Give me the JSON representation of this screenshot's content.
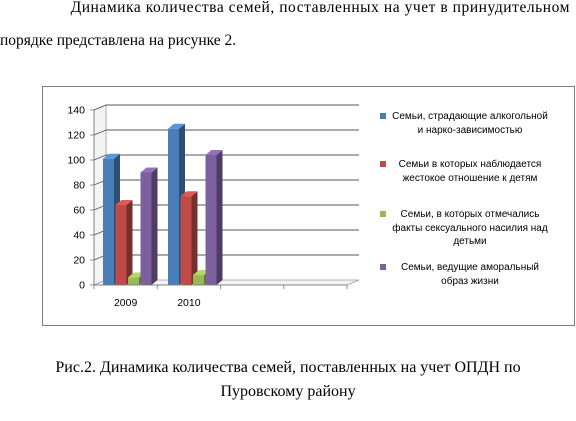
{
  "intro": {
    "line1": "Динамика количества семей,  поставленных на учет в принудительном",
    "line2": "порядке представлена на рисунке 2."
  },
  "caption": {
    "line1": "Рис.2. Динамика количества семей,  поставленных на учет ОПДН по",
    "line2": "Пуровскому району"
  },
  "chart_data": {
    "type": "bar",
    "categories": [
      "2009",
      "2010"
    ],
    "series": [
      {
        "name": "Семьи, страдающие алкогольной и нарко-зависимостью",
        "values": [
          101,
          125
        ],
        "color": "#4a7ebb"
      },
      {
        "name": "Семьи в которых наблюдается жестокое отношение к детям",
        "values": [
          64,
          71
        ],
        "color": "#be4b48"
      },
      {
        "name": "Семьи, в которых отмечались факты сексуального насилия над детьми",
        "values": [
          6,
          8
        ],
        "color": "#98b954"
      },
      {
        "name": "Семьи, ведущие аморальный образ жизни",
        "values": [
          90,
          104
        ],
        "color": "#7d60a0"
      }
    ],
    "xlabel": "",
    "ylabel": "",
    "ylim": [
      0,
      140
    ],
    "yticks": [
      0,
      20,
      40,
      60,
      80,
      100,
      120,
      140
    ],
    "grid": true,
    "style": "3d",
    "legend_position": "right"
  }
}
